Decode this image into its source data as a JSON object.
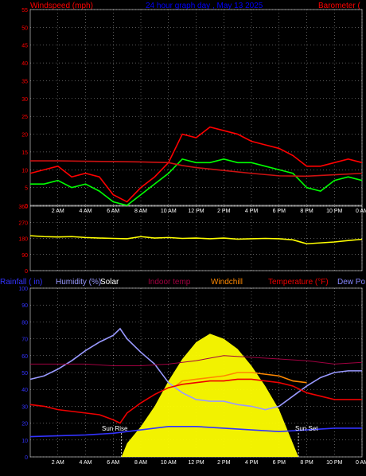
{
  "header": {
    "left_label": "Windspeed (mph)",
    "center_label": "24 hour graph day , May 13 2025",
    "right_label": "Barometer ("
  },
  "colors": {
    "axis_label_red": "#ff0000",
    "title_blue": "#0000ff",
    "grid": "#ffffff",
    "wind_gust": "#ff0000",
    "wind_avg": "#00ff00",
    "barometer": "#cc1111",
    "wind_dir": "#ffff00",
    "rain": "#3333ff",
    "humidity": "#9999ff",
    "solar": "#ffff00",
    "indoor_temp": "#a00040",
    "windchill": "#ff8800",
    "temperature": "#ee0000",
    "dew_point": "#8888ff"
  },
  "time_ticks": [
    "2 AM",
    "4 AM",
    "6 AM",
    "8 AM",
    "10 AM",
    "12 PM",
    "2 PM",
    "4 PM",
    "6 PM",
    "8 PM",
    "10 PM",
    "0 AM"
  ],
  "legend": [
    {
      "label": "Rainfall ( in)",
      "color": "#3333ff"
    },
    {
      "label": "Humidity (%)",
      "color": "#9999ff"
    },
    {
      "label": "Solar",
      "color": "#ffffff"
    },
    {
      "label": "Indoor temp",
      "color": "#a00040"
    },
    {
      "label": "Windchill",
      "color": "#ff8800"
    },
    {
      "label": "Temperature (°F)",
      "color": "#ee0000"
    },
    {
      "label": "Dew Po",
      "color": "#8888ff"
    }
  ],
  "annotations": {
    "sunrise": "Sun Rise",
    "sunset": "Sun Set"
  },
  "chart_data": [
    {
      "type": "line",
      "name": "wind",
      "x_unit": "hour",
      "xlim": [
        0,
        24
      ],
      "ylim": [
        0,
        55
      ],
      "yticks": [
        0,
        5,
        10,
        15,
        20,
        25,
        30,
        35,
        40,
        45,
        50,
        55
      ],
      "series": [
        {
          "name": "Windspeed gust",
          "x": [
            0,
            1,
            2,
            3,
            4,
            5,
            6,
            7,
            8,
            9,
            10,
            11,
            12,
            13,
            14,
            15,
            16,
            17,
            18,
            19,
            20,
            21,
            22,
            23,
            24
          ],
          "y": [
            9,
            10,
            11,
            8,
            9,
            8,
            3,
            1,
            5,
            8,
            12,
            20,
            19,
            22,
            21,
            20,
            18,
            17,
            16,
            14,
            11,
            11,
            12,
            13,
            12
          ]
        },
        {
          "name": "Windspeed avg",
          "x": [
            0,
            1,
            2,
            3,
            4,
            5,
            6,
            7,
            8,
            9,
            10,
            11,
            12,
            13,
            14,
            15,
            16,
            17,
            18,
            19,
            20,
            21,
            22,
            23,
            24
          ],
          "y": [
            6,
            6,
            7,
            5,
            6,
            4,
            1,
            0,
            3,
            6,
            9,
            13,
            12,
            12,
            13,
            12,
            12,
            11,
            10,
            9,
            5,
            4,
            7,
            8,
            7
          ]
        },
        {
          "name": "Barometer",
          "x": [
            0,
            2,
            4,
            6,
            8,
            10,
            11,
            12,
            14,
            16,
            18,
            20,
            22,
            24
          ],
          "y": [
            12.5,
            12.5,
            12.4,
            12.3,
            12.2,
            12.0,
            11.2,
            10.6,
            9.8,
            9.0,
            8.3,
            8.2,
            8.6,
            9.0
          ]
        }
      ]
    },
    {
      "type": "line",
      "name": "wind direction",
      "xlim": [
        0,
        24
      ],
      "ylim": [
        0,
        360
      ],
      "yticks": [
        0,
        90,
        180,
        270,
        360
      ],
      "series": [
        {
          "name": "Wind direction",
          "x": [
            0,
            1,
            2,
            3,
            4,
            5,
            6,
            7,
            8,
            9,
            10,
            11,
            12,
            13,
            14,
            15,
            16,
            17,
            18,
            19,
            20,
            21,
            22,
            23,
            24
          ],
          "y": [
            195,
            190,
            188,
            190,
            185,
            182,
            180,
            178,
            190,
            182,
            185,
            180,
            182,
            178,
            182,
            176,
            178,
            180,
            178,
            172,
            150,
            155,
            160,
            168,
            175
          ]
        }
      ]
    },
    {
      "type": "line",
      "name": "temperature / humidity",
      "xlim": [
        0,
        24
      ],
      "ylim": [
        0,
        100
      ],
      "yticks": [
        0,
        10,
        20,
        30,
        40,
        50,
        60,
        70,
        80,
        90,
        100
      ],
      "series": [
        {
          "name": "Humidity",
          "x": [
            0,
            1,
            2,
            3,
            4,
            5,
            6,
            6.5,
            7,
            8,
            9,
            10,
            11,
            12,
            13,
            14,
            15,
            16,
            17,
            18,
            19,
            20,
            21,
            22,
            23,
            24
          ],
          "y": [
            46,
            48,
            52,
            57,
            63,
            68,
            72,
            76,
            70,
            62,
            55,
            44,
            38,
            34,
            33,
            33,
            31,
            30,
            28,
            30,
            36,
            42,
            47,
            50,
            51,
            51
          ]
        },
        {
          "name": "Indoor temp",
          "x": [
            0,
            2,
            4,
            6,
            8,
            10,
            12,
            14,
            16,
            18,
            20,
            22,
            24
          ],
          "y": [
            55,
            55,
            55,
            54,
            54,
            55,
            57,
            60,
            59,
            58,
            57,
            55,
            56
          ]
        },
        {
          "name": "Windchill",
          "x": [
            10.5,
            11,
            12,
            13,
            14,
            15,
            16,
            17,
            18,
            19,
            20
          ],
          "y": [
            42,
            45,
            46,
            47,
            48,
            50,
            50,
            49,
            48,
            45,
            44
          ]
        },
        {
          "name": "Temperature",
          "x": [
            0,
            1,
            2,
            3,
            4,
            5,
            6,
            6.5,
            7,
            8,
            9,
            10,
            11,
            12,
            13,
            14,
            15,
            16,
            17,
            18,
            19,
            20,
            21,
            22,
            23,
            24
          ],
          "y": [
            31,
            30,
            28,
            27,
            26,
            25,
            22,
            20,
            26,
            32,
            37,
            41,
            43,
            44,
            45,
            45,
            46,
            46,
            45,
            44,
            42,
            38,
            36,
            34,
            34,
            34
          ]
        },
        {
          "name": "Rainfall",
          "x": [
            0,
            4,
            6,
            8,
            10,
            12,
            14,
            16,
            18,
            20,
            22,
            24
          ],
          "y": [
            12,
            13,
            14,
            16,
            18,
            18,
            17,
            16,
            15,
            16,
            17,
            17
          ]
        },
        {
          "name": "Solar",
          "x": [
            6.6,
            7,
            8,
            9,
            10,
            11,
            12,
            13,
            14,
            15,
            16,
            17,
            18,
            19,
            19.4
          ],
          "y": [
            0,
            8,
            18,
            30,
            45,
            58,
            68,
            73,
            70,
            64,
            54,
            42,
            28,
            8,
            0
          ]
        }
      ],
      "sunrise_hour": 6.6,
      "sunset_hour": 19.4
    }
  ]
}
